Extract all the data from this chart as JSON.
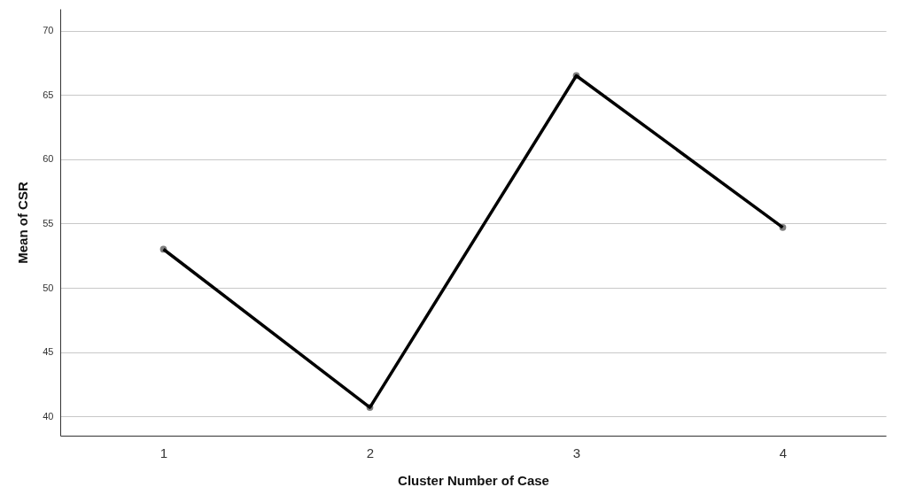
{
  "chart_data": {
    "type": "line",
    "xlabel": "Cluster Number of Case",
    "ylabel": "Mean of CSR",
    "categories": [
      "1",
      "2",
      "3",
      "4"
    ],
    "series": [
      {
        "color": "#000000",
        "values": [
          53.0,
          40.7,
          66.5,
          54.7
        ]
      }
    ],
    "ylim": [
      38.5,
      71.7
    ],
    "yticks": [
      40,
      45,
      50,
      55,
      60,
      65,
      70
    ],
    "grid": "y",
    "marker": "circle"
  }
}
